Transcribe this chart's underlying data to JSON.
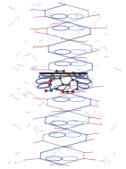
{
  "background_color": "#ffffff",
  "figsize": [
    1.41,
    1.89
  ],
  "dpi": 100,
  "seed": 7,
  "gray_color": "#aaaaaa",
  "blue_color": "#5577bb",
  "blue_dark": "#223388",
  "red_color": "#cc3333",
  "pink_color": "#cc44aa",
  "dark_color": "#333333",
  "orange_color": "#cc6622"
}
